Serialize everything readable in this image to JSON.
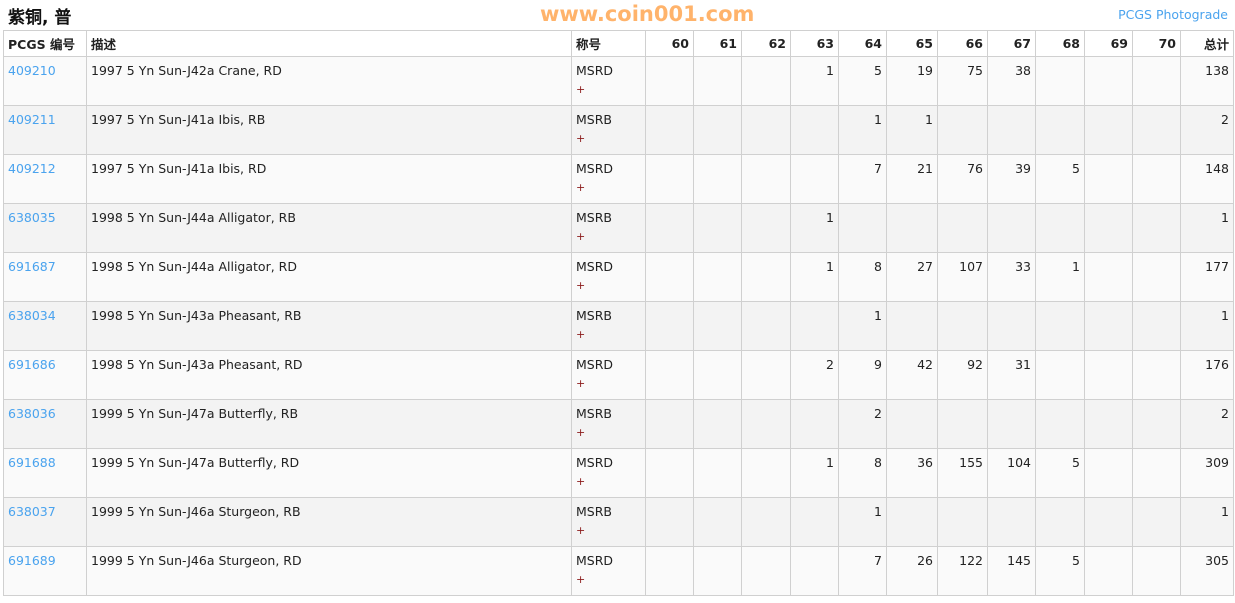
{
  "title": "紫铜, 普",
  "photograde_link": "PCGS Photograde",
  "headers": [
    "PCGS 编号",
    "描述",
    "称号",
    "60",
    "61",
    "62",
    "63",
    "64",
    "65",
    "66",
    "67",
    "68",
    "69",
    "70",
    "总计"
  ],
  "rows": [
    {
      "code": "409210",
      "desc": "1997 5 Yn Sun-J42a Crane, RD",
      "designation": "MSRD",
      "plus": "+",
      "counts": [
        "",
        "",
        "",
        "1",
        "5",
        "19",
        "75",
        "38",
        "",
        "",
        ""
      ],
      "total": "138"
    },
    {
      "code": "409211",
      "desc": "1997 5 Yn Sun-J41a Ibis, RB",
      "designation": "MSRB",
      "plus": "+",
      "counts": [
        "",
        "",
        "",
        "",
        "1",
        "1",
        "",
        "",
        "",
        "",
        ""
      ],
      "total": "2"
    },
    {
      "code": "409212",
      "desc": "1997 5 Yn Sun-J41a Ibis, RD",
      "designation": "MSRD",
      "plus": "+",
      "counts": [
        "",
        "",
        "",
        "",
        "7",
        "21",
        "76",
        "39",
        "5",
        "",
        ""
      ],
      "total": "148"
    },
    {
      "code": "638035",
      "desc": "1998 5 Yn Sun-J44a Alligator, RB",
      "designation": "MSRB",
      "plus": "+",
      "counts": [
        "",
        "",
        "",
        "1",
        "",
        "",
        "",
        "",
        "",
        "",
        ""
      ],
      "total": "1"
    },
    {
      "code": "691687",
      "desc": "1998 5 Yn Sun-J44a Alligator, RD",
      "designation": "MSRD",
      "plus": "+",
      "counts": [
        "",
        "",
        "",
        "1",
        "8",
        "27",
        "107",
        "33",
        "1",
        "",
        ""
      ],
      "total": "177"
    },
    {
      "code": "638034",
      "desc": "1998 5 Yn Sun-J43a Pheasant, RB",
      "designation": "MSRB",
      "plus": "+",
      "counts": [
        "",
        "",
        "",
        "",
        "1",
        "",
        "",
        "",
        "",
        "",
        ""
      ],
      "total": "1"
    },
    {
      "code": "691686",
      "desc": "1998 5 Yn Sun-J43a Pheasant, RD",
      "designation": "MSRD",
      "plus": "+",
      "counts": [
        "",
        "",
        "",
        "2",
        "9",
        "42",
        "92",
        "31",
        "",
        "",
        ""
      ],
      "total": "176"
    },
    {
      "code": "638036",
      "desc": "1999 5 Yn Sun-J47a Butterfly, RB",
      "designation": "MSRB",
      "plus": "+",
      "counts": [
        "",
        "",
        "",
        "",
        "2",
        "",
        "",
        "",
        "",
        "",
        ""
      ],
      "total": "2"
    },
    {
      "code": "691688",
      "desc": "1999 5 Yn Sun-J47a Butterfly, RD",
      "designation": "MSRD",
      "plus": "+",
      "counts": [
        "",
        "",
        "",
        "1",
        "8",
        "36",
        "155",
        "104",
        "5",
        "",
        ""
      ],
      "total": "309"
    },
    {
      "code": "638037",
      "desc": "1999 5 Yn Sun-J46a Sturgeon, RB",
      "designation": "MSRB",
      "plus": "+",
      "counts": [
        "",
        "",
        "",
        "",
        "1",
        "",
        "",
        "",
        "",
        "",
        ""
      ],
      "total": "1"
    },
    {
      "code": "691689",
      "desc": "1999 5 Yn Sun-J46a Sturgeon, RD",
      "designation": "MSRD",
      "plus": "+",
      "counts": [
        "",
        "",
        "",
        "",
        "7",
        "26",
        "122",
        "145",
        "5",
        "",
        ""
      ],
      "total": "305"
    }
  ],
  "watermark": "www.coin001.com"
}
